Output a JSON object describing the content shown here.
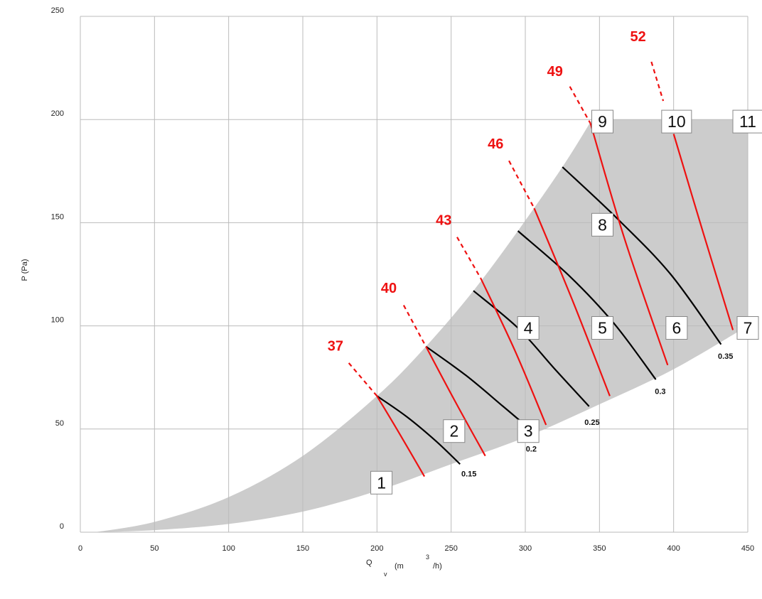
{
  "chart_data": {
    "type": "line",
    "title": "",
    "xlabel": {
      "base": "Q",
      "sub": "v",
      "unit_open": "(m",
      "sup": "3",
      "unit_close": "/h)"
    },
    "ylabel": "P (Pa)",
    "xlim": [
      0,
      450
    ],
    "ylim": [
      0,
      250
    ],
    "x_ticks": [
      "0",
      "50",
      "100",
      "150",
      "200",
      "250",
      "300",
      "350",
      "400",
      "450"
    ],
    "y_ticks": [
      "0",
      "50",
      "100",
      "150",
      "200",
      "250"
    ],
    "grid": true,
    "colors": {
      "area": "#cccccc",
      "grid": "#bbbbbb",
      "speed": "#000000",
      "sound": "#ee1111"
    },
    "envelope": {
      "upper": [
        [
          10,
          0
        ],
        [
          50,
          5
        ],
        [
          100,
          17
        ],
        [
          150,
          37
        ],
        [
          200,
          66
        ],
        [
          233,
          90
        ],
        [
          265,
          117
        ],
        [
          295,
          146
        ],
        [
          325,
          177
        ],
        [
          345,
          200
        ],
        [
          450,
          200
        ]
      ],
      "lower": [
        [
          450,
          100
        ],
        [
          400,
          79
        ],
        [
          350,
          62
        ],
        [
          300,
          46
        ],
        [
          250,
          33
        ],
        [
          200,
          20
        ],
        [
          150,
          10
        ],
        [
          100,
          4
        ],
        [
          50,
          1
        ],
        [
          10,
          0
        ]
      ]
    },
    "speed_curves": [
      {
        "label": "0.15",
        "points": [
          [
            200,
            66
          ],
          [
            220,
            56
          ],
          [
            240,
            44
          ],
          [
            256,
            33
          ]
        ]
      },
      {
        "label": "0.2",
        "points": [
          [
            233,
            90
          ],
          [
            260,
            76
          ],
          [
            285,
            61
          ],
          [
            303,
            50
          ]
        ]
      },
      {
        "label": "0.25",
        "points": [
          [
            265,
            117
          ],
          [
            295,
            99
          ],
          [
            320,
            79
          ],
          [
            343,
            61
          ]
        ]
      },
      {
        "label": "0.3",
        "points": [
          [
            295,
            146
          ],
          [
            330,
            124
          ],
          [
            360,
            101
          ],
          [
            388,
            74
          ]
        ]
      },
      {
        "label": "0.35",
        "points": [
          [
            325,
            177
          ],
          [
            362,
            152
          ],
          [
            398,
            125
          ],
          [
            432,
            91
          ]
        ]
      }
    ],
    "sound_curves": [
      {
        "label": "37",
        "points": [
          [
            200,
            66
          ],
          [
            215,
            48
          ],
          [
            232,
            27
          ]
        ]
      },
      {
        "label": "40",
        "points": [
          [
            233,
            90
          ],
          [
            253,
            63
          ],
          [
            273,
            37
          ]
        ]
      },
      {
        "label": "43",
        "points": [
          [
            270,
            123
          ],
          [
            293,
            88
          ],
          [
            314,
            52
          ]
        ]
      },
      {
        "label": "46",
        "points": [
          [
            306,
            157
          ],
          [
            332,
            112
          ],
          [
            357,
            66
          ]
        ]
      },
      {
        "label": "49",
        "points": [
          [
            344,
            198
          ],
          [
            367,
            142
          ],
          [
            396,
            81
          ]
        ]
      },
      {
        "label": "52",
        "points": [
          [
            400,
            193
          ],
          [
            420,
            145
          ],
          [
            440,
            98
          ]
        ]
      }
    ],
    "sound_leaders": [
      [
        [
          181,
          82
        ],
        [
          200,
          66
        ]
      ],
      [
        [
          218,
          110
        ],
        [
          233,
          90
        ]
      ],
      [
        [
          254,
          143
        ],
        [
          270,
          123
        ]
      ],
      [
        [
          289,
          180
        ],
        [
          306,
          157
        ]
      ],
      [
        [
          330,
          216
        ],
        [
          344,
          198
        ]
      ],
      [
        [
          385,
          228
        ],
        [
          393,
          209
        ]
      ]
    ],
    "sound_labels": [
      {
        "text": "37",
        "at": [
          172,
          88
        ]
      },
      {
        "text": "40",
        "at": [
          208,
          116
        ]
      },
      {
        "text": "43",
        "at": [
          245,
          149
        ]
      },
      {
        "text": "46",
        "at": [
          280,
          186
        ]
      },
      {
        "text": "49",
        "at": [
          320,
          221
        ]
      },
      {
        "text": "52",
        "at": [
          376,
          238
        ]
      }
    ],
    "operating_points": [
      {
        "label": "1",
        "at": [
          203,
          24
        ]
      },
      {
        "label": "2",
        "at": [
          252,
          49
        ]
      },
      {
        "label": "3",
        "at": [
          302,
          49
        ]
      },
      {
        "label": "4",
        "at": [
          302,
          99
        ]
      },
      {
        "label": "5",
        "at": [
          352,
          99
        ]
      },
      {
        "label": "6",
        "at": [
          402,
          99
        ]
      },
      {
        "label": "7",
        "at": [
          450,
          99
        ]
      },
      {
        "label": "8",
        "at": [
          352,
          149
        ]
      },
      {
        "label": "9",
        "at": [
          352,
          199
        ]
      },
      {
        "label": "10",
        "at": [
          402,
          199
        ]
      },
      {
        "label": "11",
        "at": [
          450,
          199
        ]
      }
    ],
    "speed_labels": [
      {
        "text": "0.15",
        "at": [
          262,
          27
        ]
      },
      {
        "text": "0.2",
        "at": [
          304,
          39
        ]
      },
      {
        "text": "0.25",
        "at": [
          345,
          52
        ]
      },
      {
        "text": "0.3",
        "at": [
          391,
          67
        ]
      },
      {
        "text": "0.35",
        "at": [
          435,
          84
        ]
      }
    ]
  }
}
